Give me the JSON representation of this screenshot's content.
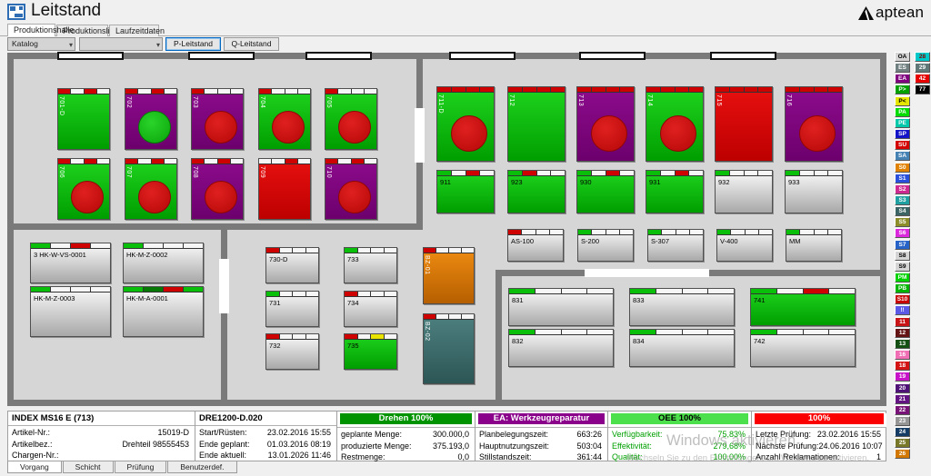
{
  "header": {
    "app_title": "Leitstand",
    "logo_text": "aptean",
    "tabs": [
      {
        "label": "Produktionshalle",
        "active": true
      },
      {
        "label": "Produktionsliste",
        "active": false
      },
      {
        "label": "Laufzeitdaten",
        "active": false
      }
    ],
    "catalog_dropdown_value": "Katalog",
    "filter_dropdown_value": "",
    "buttons": [
      {
        "label": "P-Leitstand",
        "focused": true
      },
      {
        "label": "Q-Leitstand",
        "focused": false
      }
    ]
  },
  "colors": {
    "strip": {
      "red": "#cf0202",
      "green": "#0abf0a",
      "darkgreen": "#067806",
      "yellow": "#e8e400",
      "white": "#f6f6f6"
    },
    "body_green": "#00b400",
    "body_purple": "#800080",
    "body_red": "#d40000",
    "body_silver": "#d8d8d8",
    "body_orange": "#e07800",
    "body_teal": "#3d6f6f"
  },
  "machines": [
    {
      "id": "701-D",
      "label": "701-D",
      "body": "green",
      "circle": null,
      "strip": [
        "red",
        "white",
        "red",
        "white"
      ],
      "vertical": true
    },
    {
      "id": "702",
      "label": "702",
      "body": "purple",
      "circle": "green",
      "strip": [
        "red",
        "white",
        "red",
        "white"
      ],
      "vertical": true
    },
    {
      "id": "703",
      "label": "703",
      "body": "purple",
      "circle": "red",
      "strip": [
        "red",
        "white",
        "white",
        "white"
      ],
      "vertical": true
    },
    {
      "id": "704",
      "label": "704",
      "body": "green",
      "circle": "red",
      "strip": [
        "red",
        "white",
        "white",
        "white"
      ],
      "vertical": true
    },
    {
      "id": "705",
      "label": "705",
      "body": "green",
      "circle": "red",
      "strip": [
        "red",
        "white",
        "white",
        "white"
      ],
      "vertical": true
    },
    {
      "id": "706",
      "label": "706",
      "body": "green",
      "circle": "red",
      "strip": [
        "red",
        "white",
        "red",
        "white"
      ],
      "vertical": true
    },
    {
      "id": "707",
      "label": "707",
      "body": "green",
      "circle": "red",
      "strip": [
        "red",
        "white",
        "red",
        "white"
      ],
      "vertical": true
    },
    {
      "id": "708",
      "label": "708",
      "body": "purple",
      "circle": "red",
      "strip": [
        "red",
        "white",
        "red",
        "white"
      ],
      "vertical": true
    },
    {
      "id": "709",
      "label": "709",
      "body": "red",
      "circle": null,
      "strip": [
        "white",
        "white",
        "red",
        "white"
      ],
      "vertical": true
    },
    {
      "id": "710",
      "label": "710",
      "body": "purple",
      "circle": "red",
      "strip": [
        "red",
        "white",
        "red",
        "white"
      ],
      "vertical": true
    },
    {
      "id": "711-D",
      "label": "711-D",
      "body": "green",
      "circle": "red",
      "strip": [
        "red",
        "red",
        "red",
        "red"
      ],
      "vertical": true
    },
    {
      "id": "712",
      "label": "712",
      "body": "green",
      "circle": null,
      "strip": [
        "red",
        "red",
        "red",
        "red"
      ],
      "vertical": true
    },
    {
      "id": "713",
      "label": "713",
      "body": "purple",
      "circle": "red",
      "strip": [
        "red",
        "red",
        "red",
        "red"
      ],
      "vertical": true
    },
    {
      "id": "714",
      "label": "714",
      "body": "green",
      "circle": "red",
      "strip": [
        "red",
        "red",
        "red",
        "red"
      ],
      "vertical": true
    },
    {
      "id": "715",
      "label": "715",
      "body": "red",
      "circle": null,
      "strip": [
        "red",
        "red",
        "red",
        "red"
      ],
      "vertical": true
    },
    {
      "id": "716",
      "label": "716",
      "body": "purple",
      "circle": "red",
      "strip": [
        "red",
        "red",
        "red",
        "red"
      ],
      "vertical": true
    },
    {
      "id": "911",
      "label": "911",
      "body": "green",
      "circle": null,
      "strip": [
        "green",
        "white",
        "red",
        "white"
      ],
      "vertical": false
    },
    {
      "id": "923",
      "label": "923",
      "body": "green",
      "circle": null,
      "strip": [
        "green",
        "red",
        "white",
        "white"
      ],
      "vertical": false
    },
    {
      "id": "930",
      "label": "930",
      "body": "green",
      "circle": null,
      "strip": [
        "green",
        "white",
        "red",
        "white"
      ],
      "vertical": false
    },
    {
      "id": "931",
      "label": "931",
      "body": "green",
      "circle": null,
      "strip": [
        "green",
        "white",
        "red",
        "white"
      ],
      "vertical": false
    },
    {
      "id": "932",
      "label": "932",
      "body": "silver",
      "circle": null,
      "strip": [
        "green",
        "white",
        "white",
        "white"
      ],
      "vertical": false
    },
    {
      "id": "933",
      "label": "933",
      "body": "silver",
      "circle": null,
      "strip": [
        "green",
        "white",
        "white",
        "white"
      ],
      "vertical": false
    },
    {
      "id": "AS-100",
      "label": "AS-100",
      "body": "silver",
      "circle": null,
      "strip": [
        "red",
        "white",
        "white",
        "white"
      ],
      "vertical": false
    },
    {
      "id": "S-200",
      "label": "S-200",
      "body": "silver",
      "circle": null,
      "strip": [
        "green",
        "white",
        "white",
        "white"
      ],
      "vertical": false
    },
    {
      "id": "S-307",
      "label": "S-307",
      "body": "silver",
      "circle": null,
      "strip": [
        "green",
        "white",
        "white",
        "white"
      ],
      "vertical": false
    },
    {
      "id": "V-400",
      "label": "V-400",
      "body": "silver",
      "circle": null,
      "strip": [
        "green",
        "white",
        "white",
        "white"
      ],
      "vertical": false
    },
    {
      "id": "MM",
      "label": "MM",
      "body": "silver",
      "circle": null,
      "strip": [
        "green",
        "white",
        "white",
        "white"
      ],
      "vertical": false
    },
    {
      "id": "BZ-01",
      "label": "BZ-01",
      "body": "orange",
      "circle": null,
      "strip": [
        "red",
        "white",
        "white",
        "white"
      ],
      "vertical": true
    },
    {
      "id": "BZ-02",
      "label": "BZ-02",
      "body": "teal",
      "circle": null,
      "strip": [
        "red",
        "white",
        "white",
        "white"
      ],
      "vertical": true
    },
    {
      "id": "HK-W-VS-0001",
      "label": "3 HK-W-VS-0001",
      "body": "silver",
      "circle": null,
      "strip": [
        "green",
        "white",
        "red",
        "white"
      ],
      "vertical": false
    },
    {
      "id": "HK-M-Z-0002",
      "label": "HK-M-Z-0002",
      "body": "silver",
      "circle": null,
      "strip": [
        "green",
        "white",
        "white",
        "white"
      ],
      "vertical": false
    },
    {
      "id": "HK-M-Z-0003",
      "label": "HK-M-Z-0003",
      "body": "silver",
      "circle": null,
      "strip": [
        "green",
        "white",
        "white",
        "white"
      ],
      "vertical": false
    },
    {
      "id": "HK-M-A-0001",
      "label": "HK-M-A-0001",
      "body": "silver",
      "circle": null,
      "strip": [
        "green",
        "darkgreen",
        "red",
        "green"
      ],
      "vertical": false
    },
    {
      "id": "730-D",
      "label": "730-D",
      "body": "silver",
      "circle": null,
      "strip": [
        "red",
        "white",
        "white",
        "white"
      ],
      "vertical": false
    },
    {
      "id": "733",
      "label": "733",
      "body": "silver",
      "circle": null,
      "strip": [
        "green",
        "white",
        "white",
        "white"
      ],
      "vertical": false
    },
    {
      "id": "731",
      "label": "731",
      "body": "silver",
      "circle": null,
      "strip": [
        "green",
        "white",
        "white",
        "white"
      ],
      "vertical": false
    },
    {
      "id": "734",
      "label": "734",
      "body": "silver",
      "circle": null,
      "strip": [
        "red",
        "white",
        "white",
        "white"
      ],
      "vertical": false
    },
    {
      "id": "732",
      "label": "732",
      "body": "silver",
      "circle": null,
      "strip": [
        "red",
        "white",
        "white",
        "white"
      ],
      "vertical": false
    },
    {
      "id": "735",
      "label": "735",
      "body": "green",
      "circle": null,
      "strip": [
        "red",
        "white",
        "yellow",
        "white"
      ],
      "vertical": false
    },
    {
      "id": "831",
      "label": "831",
      "body": "silver",
      "circle": null,
      "strip": [
        "green",
        "white",
        "white",
        "white"
      ],
      "vertical": false
    },
    {
      "id": "833",
      "label": "833",
      "body": "silver",
      "circle": null,
      "strip": [
        "green",
        "white",
        "white",
        "white"
      ],
      "vertical": false
    },
    {
      "id": "741",
      "label": "741",
      "body": "green",
      "circle": null,
      "strip": [
        "green",
        "white",
        "red",
        "white"
      ],
      "vertical": false
    },
    {
      "id": "832",
      "label": "832",
      "body": "silver",
      "circle": null,
      "strip": [
        "green",
        "white",
        "white",
        "white"
      ],
      "vertical": false
    },
    {
      "id": "834",
      "label": "834",
      "body": "silver",
      "circle": null,
      "strip": [
        "green",
        "white",
        "white",
        "white"
      ],
      "vertical": false
    },
    {
      "id": "742",
      "label": "742",
      "body": "silver",
      "circle": null,
      "strip": [
        "green",
        "white",
        "white",
        "white"
      ],
      "vertical": false
    }
  ],
  "legend": {
    "col1": [
      {
        "label": "OA",
        "bg": "#d4d4d4",
        "fg": "#000000"
      },
      {
        "label": "ES",
        "bg": "#708080",
        "fg": "#ffffff"
      },
      {
        "label": "EA",
        "bg": "#800080",
        "fg": "#ffffff"
      },
      {
        "label": "P>",
        "bg": "#00a000",
        "fg": "#ffffff"
      },
      {
        "label": "P<",
        "bg": "#e6e600",
        "fg": "#000000"
      },
      {
        "label": "PA",
        "bg": "#00dc00",
        "fg": "#ffffff"
      },
      {
        "label": "PE",
        "bg": "#00c8aa",
        "fg": "#ffffff"
      },
      {
        "label": "SP",
        "bg": "#1414c8",
        "fg": "#ffffff"
      },
      {
        "label": "SU",
        "bg": "#d40000",
        "fg": "#ffffff"
      },
      {
        "label": "SA",
        "bg": "#4682b4",
        "fg": "#ffffff"
      },
      {
        "label": "S0",
        "bg": "#e08200",
        "fg": "#ffffff"
      },
      {
        "label": "S1",
        "bg": "#2850dc",
        "fg": "#ffffff"
      },
      {
        "label": "S2",
        "bg": "#cd2990",
        "fg": "#ffffff"
      },
      {
        "label": "S3",
        "bg": "#20a0a0",
        "fg": "#ffffff"
      },
      {
        "label": "S4",
        "bg": "#3c6464",
        "fg": "#ffffff"
      },
      {
        "label": "S5",
        "bg": "#8c8c28",
        "fg": "#ffffff"
      },
      {
        "label": "S6",
        "bg": "#dc28dc",
        "fg": "#ffffff"
      },
      {
        "label": "S7",
        "bg": "#2864c8",
        "fg": "#ffffff"
      },
      {
        "label": "S8",
        "bg": "#d4d4d4",
        "fg": "#000000"
      },
      {
        "label": "S9",
        "bg": "#d4d4d4",
        "fg": "#000000"
      },
      {
        "label": "PM",
        "bg": "#00d200",
        "fg": "#ffffff"
      },
      {
        "label": "PB",
        "bg": "#00b400",
        "fg": "#ffffff"
      },
      {
        "label": "S10",
        "bg": "#c80000",
        "fg": "#ffffff"
      },
      {
        "label": "!!",
        "bg": "#5a5ae6",
        "fg": "#ffffff"
      },
      {
        "label": "11",
        "bg": "#c81414",
        "fg": "#ffffff"
      },
      {
        "label": "12",
        "bg": "#641414",
        "fg": "#ffffff"
      },
      {
        "label": "13",
        "bg": "#145014",
        "fg": "#ffffff"
      },
      {
        "label": "16",
        "bg": "#f06eb4",
        "fg": "#ffffff"
      },
      {
        "label": "18",
        "bg": "#d41414",
        "fg": "#ffffff"
      },
      {
        "label": "19",
        "bg": "#c814c8",
        "fg": "#ffffff"
      },
      {
        "label": "20",
        "bg": "#501478",
        "fg": "#ffffff"
      },
      {
        "label": "21",
        "bg": "#641482",
        "fg": "#ffffff"
      },
      {
        "label": "22",
        "bg": "#781478",
        "fg": "#ffffff"
      },
      {
        "label": "23",
        "bg": "#969696",
        "fg": "#ffffff"
      },
      {
        "label": "24",
        "bg": "#143c64",
        "fg": "#ffffff"
      },
      {
        "label": "25",
        "bg": "#787828",
        "fg": "#ffffff"
      },
      {
        "label": "26",
        "bg": "#d27800",
        "fg": "#ffffff"
      }
    ],
    "col2": [
      {
        "label": "28",
        "bg": "#00c8c8",
        "fg": "#8b0000"
      },
      {
        "label": "29",
        "bg": "#607878",
        "fg": "#ffffff"
      },
      {
        "label": "42",
        "bg": "#e60000",
        "fg": "#ffffff"
      },
      {
        "label": "77",
        "bg": "#000000",
        "fg": "#ffffff"
      }
    ]
  },
  "status_panel": {
    "sections": [
      {
        "header": "INDEX MS16 E (713)",
        "style": "plain",
        "rows": [
          {
            "label": "Artikel-Nr.:",
            "value": "15019-D"
          },
          {
            "label": "Artikelbez.:",
            "value": "Drehteil 98555453"
          },
          {
            "label": "Chargen-Nr.:",
            "value": ""
          }
        ]
      },
      {
        "header": "DRE1200-D.020",
        "style": "plain",
        "rows": [
          {
            "label": "Start/Rüsten:",
            "value": "23.02.2016  15:55"
          },
          {
            "label": "Ende geplant:",
            "value": "01.03.2016  08:19"
          },
          {
            "label": "Ende aktuell:",
            "value": "13.01.2026  11:46"
          }
        ]
      },
      {
        "header": "Drehen 100%",
        "style": "green",
        "rows": [
          {
            "label": "geplante Menge:",
            "value": "300.000,0"
          },
          {
            "label": "produzierte Menge:",
            "value": "375.193,0"
          },
          {
            "label": "Restmenge:",
            "value": "0,0"
          }
        ]
      },
      {
        "header": "EA: Werkzeugreparatur",
        "style": "purple",
        "rows": [
          {
            "label": "Planbelegungszeit:",
            "value": "663:26"
          },
          {
            "label": "Hauptnutzungszeit:",
            "value": "503:04"
          },
          {
            "label": "Stillstandszeit:",
            "value": "361:44"
          }
        ]
      },
      {
        "header": "OEE 100%",
        "style": "lightgreen",
        "row_color": "#00a000",
        "rows": [
          {
            "label": "Verfügbarkeit:",
            "value": "75,83%"
          },
          {
            "label": "Effektivität:",
            "value": "279,68%"
          },
          {
            "label": "Qualität:",
            "value": "100,00%"
          }
        ]
      },
      {
        "header": "100%",
        "style": "redbar",
        "rows": [
          {
            "label": "Letzte Prüfung:",
            "value": "23.02.2016  15:55"
          },
          {
            "label": "Nächste Prüfung:",
            "value": "24.06.2016  10:07"
          },
          {
            "label": "Anzahl Reklamationen:",
            "value": "1"
          }
        ]
      }
    ],
    "footer_tabs": [
      {
        "label": "Vorgang",
        "active": true
      },
      {
        "label": "Schicht",
        "active": false
      },
      {
        "label": "Prüfung",
        "active": false
      },
      {
        "label": "Benutzerdef.",
        "active": false
      }
    ]
  },
  "watermark": {
    "line1": "Windows aktivieren",
    "line2": "Wechseln Sie zu den Einstellungen, um Windows zu aktivieren."
  }
}
